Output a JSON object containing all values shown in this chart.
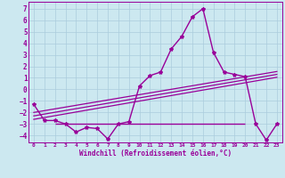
{
  "title": "",
  "xlabel": "Windchill (Refroidissement éolien,°C)",
  "bg_color": "#cce8f0",
  "grid_color": "#aaccdd",
  "line_color": "#990099",
  "xlim": [
    -0.5,
    23.5
  ],
  "ylim": [
    -4.6,
    7.6
  ],
  "yticks": [
    -4,
    -3,
    -2,
    -1,
    0,
    1,
    2,
    3,
    4,
    5,
    6,
    7
  ],
  "xticks": [
    0,
    1,
    2,
    3,
    4,
    5,
    6,
    7,
    8,
    9,
    10,
    11,
    12,
    13,
    14,
    15,
    16,
    17,
    18,
    19,
    20,
    21,
    22,
    23
  ],
  "data_x": [
    0,
    1,
    2,
    3,
    4,
    5,
    6,
    7,
    8,
    9,
    10,
    11,
    12,
    13,
    14,
    15,
    16,
    17,
    18,
    19,
    20,
    21,
    22,
    23
  ],
  "data_y": [
    -1.3,
    -2.7,
    -2.7,
    -3.0,
    -3.7,
    -3.3,
    -3.4,
    -4.3,
    -3.0,
    -2.8,
    0.3,
    1.2,
    1.5,
    3.5,
    4.6,
    6.3,
    7.0,
    3.2,
    1.5,
    1.3,
    1.1,
    -3.0,
    -4.4,
    -3.0
  ],
  "trend1_x": [
    0,
    23
  ],
  "trend1_y": [
    -2.6,
    1.05
  ],
  "trend2_x": [
    0,
    23
  ],
  "trend2_y": [
    -2.3,
    1.3
  ],
  "trend3_x": [
    0,
    23
  ],
  "trend3_y": [
    -2.0,
    1.55
  ],
  "hline_y": -2.95,
  "hline_x_start": 2,
  "hline_x_end": 20
}
